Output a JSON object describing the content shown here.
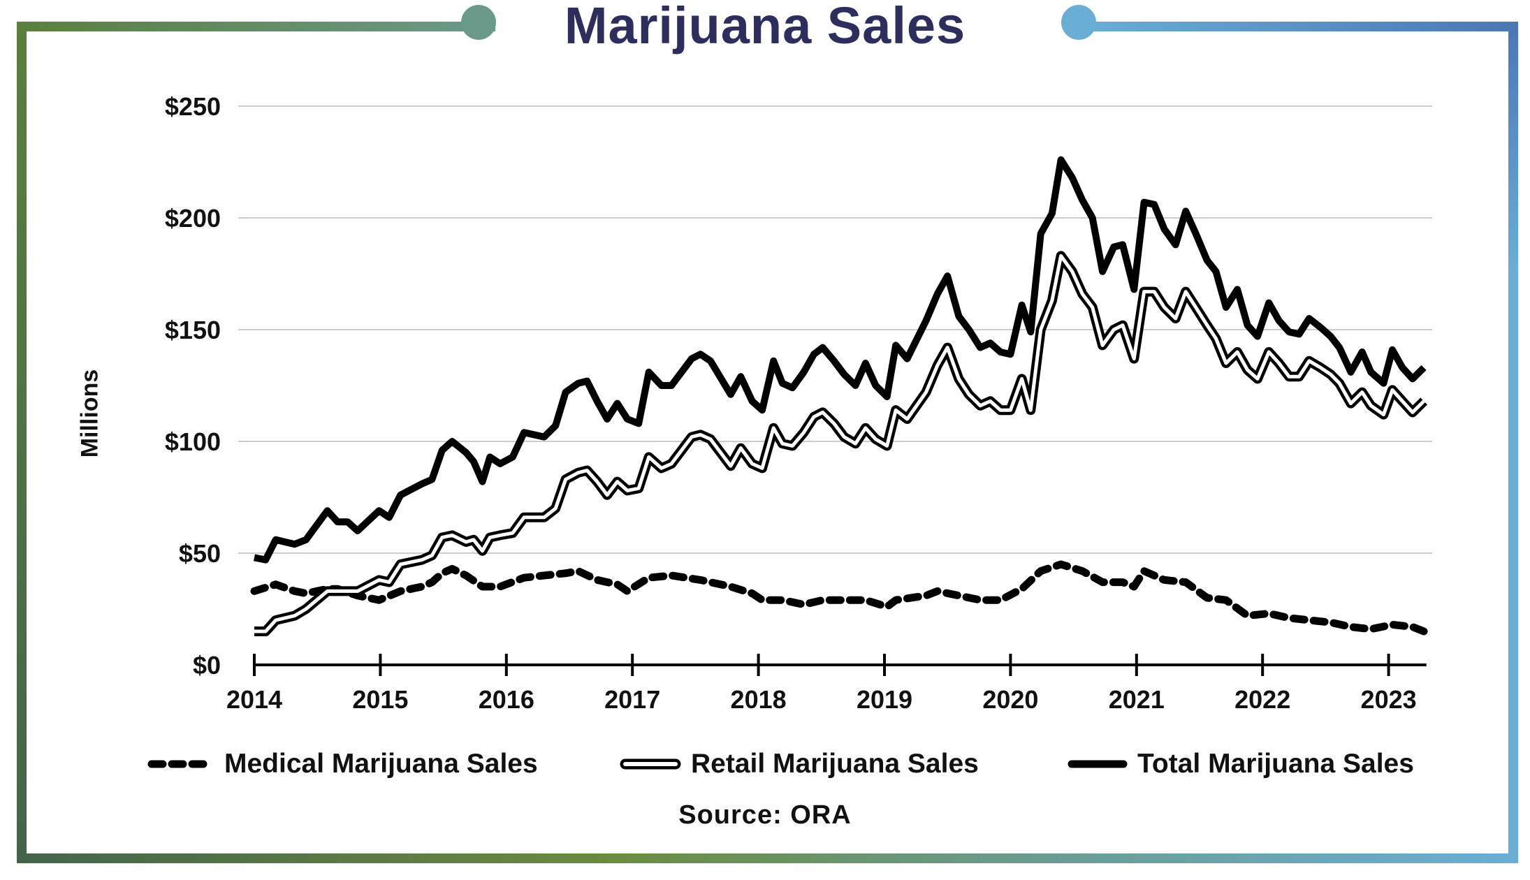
{
  "title": "Marijuana Sales",
  "colors": {
    "title": "#2d2d5e",
    "frame_green": "#5a7f3e",
    "frame_teal": "#6a9a8a",
    "frame_lightblue": "#6aaed6",
    "frame_blue": "#4a77b5",
    "lines": "#000000",
    "grid": "#bbbbbb"
  },
  "chart_data": {
    "type": "line",
    "title": "Marijuana Sales",
    "xlabel": "",
    "ylabel": "Millions",
    "source": "Source: ORA",
    "xlim": [
      2014,
      2023.3
    ],
    "ylim": [
      0,
      250
    ],
    "x_ticks": [
      2014,
      2015,
      2016,
      2017,
      2018,
      2019,
      2020,
      2021,
      2022,
      2023
    ],
    "x_tick_labels": [
      "2014",
      "2015",
      "2016",
      "2017",
      "2018",
      "2019",
      "2020",
      "2021",
      "2022",
      "2023"
    ],
    "y_ticks": [
      0,
      50,
      100,
      150,
      200,
      250
    ],
    "y_tick_labels": [
      "$0",
      "$50",
      "$100",
      "$150",
      "$200",
      "$250"
    ],
    "grid": "horizontal",
    "legend_position": "bottom",
    "x": [
      2014.0,
      2014.09,
      2014.17,
      2014.32,
      2014.41,
      2014.58,
      2014.66,
      2014.74,
      2014.82,
      2014.99,
      2015.07,
      2015.16,
      2015.33,
      2015.41,
      2015.49,
      2015.57,
      2015.68,
      2015.74,
      2015.81,
      2015.87,
      2015.95,
      2016.05,
      2016.14,
      2016.3,
      2016.39,
      2016.47,
      2016.57,
      2016.64,
      2016.72,
      2016.8,
      2016.88,
      2016.96,
      2017.05,
      2017.13,
      2017.23,
      2017.31,
      2017.47,
      2017.54,
      2017.62,
      2017.78,
      2017.86,
      2017.95,
      2018.03,
      2018.12,
      2018.19,
      2018.27,
      2018.36,
      2018.44,
      2018.51,
      2018.6,
      2018.68,
      2018.77,
      2018.85,
      2018.93,
      2019.02,
      2019.09,
      2019.18,
      2019.33,
      2019.42,
      2019.5,
      2019.59,
      2019.67,
      2019.76,
      2019.84,
      2019.92,
      2020.0,
      2020.09,
      2020.16,
      2020.24,
      2020.33,
      2020.4,
      2020.49,
      2020.57,
      2020.65,
      2020.73,
      2020.82,
      2020.89,
      2020.98,
      2021.06,
      2021.14,
      2021.22,
      2021.31,
      2021.39,
      2021.47,
      2021.56,
      2021.63,
      2021.71,
      2021.8,
      2021.88,
      2021.96,
      2022.05,
      2022.13,
      2022.21,
      2022.29,
      2022.37,
      2022.46,
      2022.54,
      2022.61,
      2022.7,
      2022.79,
      2022.86,
      2022.96,
      2023.03,
      2023.11,
      2023.19,
      2023.28
    ],
    "series": [
      {
        "name": "Total Marijuana Sales",
        "style": "solid-thick",
        "values": [
          48,
          47,
          56,
          54,
          56,
          69,
          64,
          64,
          60,
          69,
          66,
          76,
          81,
          83,
          96,
          100,
          95,
          91,
          82,
          93,
          90,
          93,
          104,
          102,
          107,
          122,
          126,
          127,
          118,
          110,
          117,
          110,
          108,
          131,
          125,
          125,
          137,
          139,
          136,
          121,
          129,
          118,
          114,
          136,
          126,
          124,
          131,
          139,
          142,
          136,
          130,
          125,
          135,
          125,
          120,
          143,
          137,
          154,
          166,
          174,
          156,
          150,
          142,
          144,
          140,
          139,
          161,
          149,
          193,
          202,
          226,
          218,
          208,
          200,
          176,
          187,
          188,
          168,
          207,
          206,
          195,
          188,
          203,
          193,
          181,
          176,
          160,
          168,
          152,
          147,
          162,
          154,
          149,
          148,
          155,
          151,
          147,
          142,
          131,
          140,
          131,
          126,
          141,
          133,
          128,
          133
        ]
      },
      {
        "name": "Retail Marijuana Sales",
        "style": "outlined",
        "values": [
          15,
          15,
          20,
          22,
          25,
          33,
          33,
          33,
          33,
          38,
          37,
          45,
          47,
          49,
          57,
          58,
          55,
          56,
          51,
          57,
          58,
          59,
          66,
          66,
          70,
          83,
          86,
          87,
          82,
          76,
          82,
          78,
          79,
          93,
          88,
          90,
          102,
          103,
          101,
          89,
          97,
          90,
          88,
          106,
          99,
          98,
          104,
          111,
          113,
          108,
          102,
          99,
          106,
          101,
          98,
          114,
          110,
          122,
          134,
          142,
          128,
          121,
          116,
          118,
          114,
          114,
          128,
          114,
          150,
          163,
          183,
          176,
          166,
          160,
          143,
          150,
          152,
          137,
          167,
          167,
          160,
          155,
          167,
          160,
          152,
          146,
          135,
          140,
          132,
          128,
          140,
          135,
          129,
          129,
          136,
          133,
          130,
          126,
          117,
          122,
          116,
          112,
          123,
          118,
          113,
          118
        ]
      },
      {
        "name": "Medical Marijuana Sales",
        "style": "dashed",
        "x": [
          2014.0,
          2014.17,
          2014.32,
          2014.41,
          2014.58,
          2014.66,
          2014.82,
          2014.99,
          2015.16,
          2015.33,
          2015.41,
          2015.49,
          2015.57,
          2015.68,
          2015.81,
          2015.95,
          2016.14,
          2016.3,
          2016.47,
          2016.57,
          2016.72,
          2016.88,
          2016.96,
          2017.13,
          2017.31,
          2017.54,
          2017.78,
          2017.95,
          2018.03,
          2018.19,
          2018.36,
          2018.51,
          2018.68,
          2018.85,
          2019.02,
          2019.09,
          2019.33,
          2019.42,
          2019.59,
          2019.76,
          2019.92,
          2020.09,
          2020.24,
          2020.4,
          2020.57,
          2020.73,
          2020.89,
          2020.98,
          2021.06,
          2021.22,
          2021.39,
          2021.56,
          2021.71,
          2021.88,
          2022.05,
          2022.21,
          2022.37,
          2022.54,
          2022.7,
          2022.86,
          2023.03,
          2023.19,
          2023.28
        ],
        "values": [
          33,
          36,
          33,
          32,
          34,
          34,
          31,
          29,
          33,
          35,
          37,
          41,
          43,
          40,
          35,
          35,
          39,
          40,
          41,
          42,
          38,
          36,
          33,
          39,
          40,
          38,
          35,
          32,
          29,
          29,
          27,
          29,
          29,
          29,
          26,
          29,
          31,
          33,
          31,
          29,
          29,
          34,
          42,
          45,
          42,
          37,
          37,
          35,
          42,
          38,
          37,
          30,
          29,
          22,
          23,
          21,
          20,
          19,
          17,
          16,
          18,
          17,
          15
        ]
      }
    ]
  },
  "legend": [
    {
      "label": "Medical Marijuana Sales",
      "icon": "dashed-line-icon"
    },
    {
      "label": "Retail Marijuana Sales",
      "icon": "outlined-line-icon"
    },
    {
      "label": "Total Marijuana Sales",
      "icon": "thick-line-icon"
    }
  ]
}
